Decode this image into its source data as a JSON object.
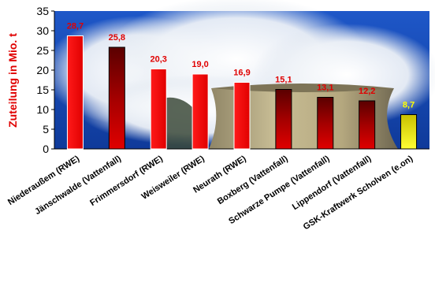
{
  "chart_data": {
    "type": "bar",
    "title": "",
    "xlabel": "",
    "ylabel": "Zuteilung in Mio. t",
    "ylim": [
      0,
      35
    ],
    "y_ticks": [
      "0",
      "5",
      "10",
      "15",
      "20",
      "25",
      "30",
      "35"
    ],
    "grid": false,
    "legend": "none",
    "categories": [
      "Niederaußem (RWE)",
      "Jänschwalde (Vattenfall)",
      "Frimmersdorf (RWE)",
      "Weisweiler (RWE)",
      "Neurath (RWE)",
      "Boxberg (Vattenfall)",
      "Schwarze Pumpe (Vattenfall)",
      "Lippendorf (Vattenfall)",
      "GSK-Kraftwerk Scholven (e.on)"
    ],
    "values": [
      28.7,
      25.8,
      20.3,
      19.0,
      16.9,
      15.1,
      13.1,
      12.2,
      8.7
    ],
    "value_labels": [
      "28,7",
      "25,8",
      "20,3",
      "19,0",
      "16,9",
      "15,1",
      "13,1",
      "12,2",
      "8,7"
    ],
    "colors": {
      "red": "#ff0000",
      "dark_red": "#8b0000",
      "yellow": "#f4f000",
      "label_red": "#e00000",
      "label_yellow": "#ffff00",
      "axis": "#000000"
    },
    "bar_colors": [
      "red",
      "dark_red",
      "red",
      "red",
      "red",
      "dark_red",
      "dark_red",
      "dark_red",
      "yellow"
    ]
  }
}
